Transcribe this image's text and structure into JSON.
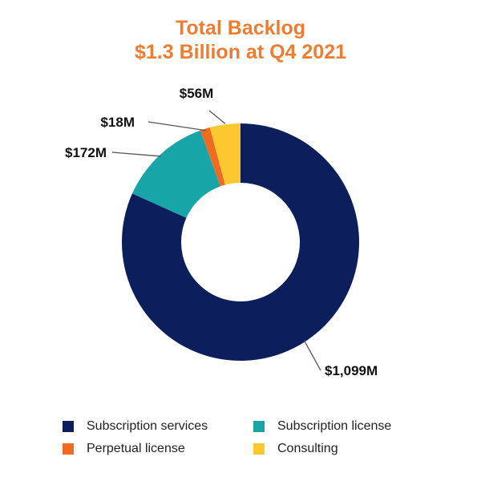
{
  "colors": {
    "title": "#ee7d31",
    "subscription_services": "#0c1e5b",
    "subscription_license": "#17a5a7",
    "perpetual_license": "#f06a22",
    "consulting": "#fdc82f"
  },
  "chart_data": {
    "type": "pie",
    "variant": "donut",
    "title": "Total Backlog",
    "subtitle": "$1.3 Billion at Q4 2021",
    "categories": [
      "Subscription services",
      "Subscription license",
      "Perpetual license",
      "Consulting"
    ],
    "values": [
      1099,
      172,
      18,
      56
    ],
    "data_labels": [
      "$1,099M",
      "$172M",
      "$18M",
      "$56M"
    ],
    "legend_placement": "bottom"
  }
}
